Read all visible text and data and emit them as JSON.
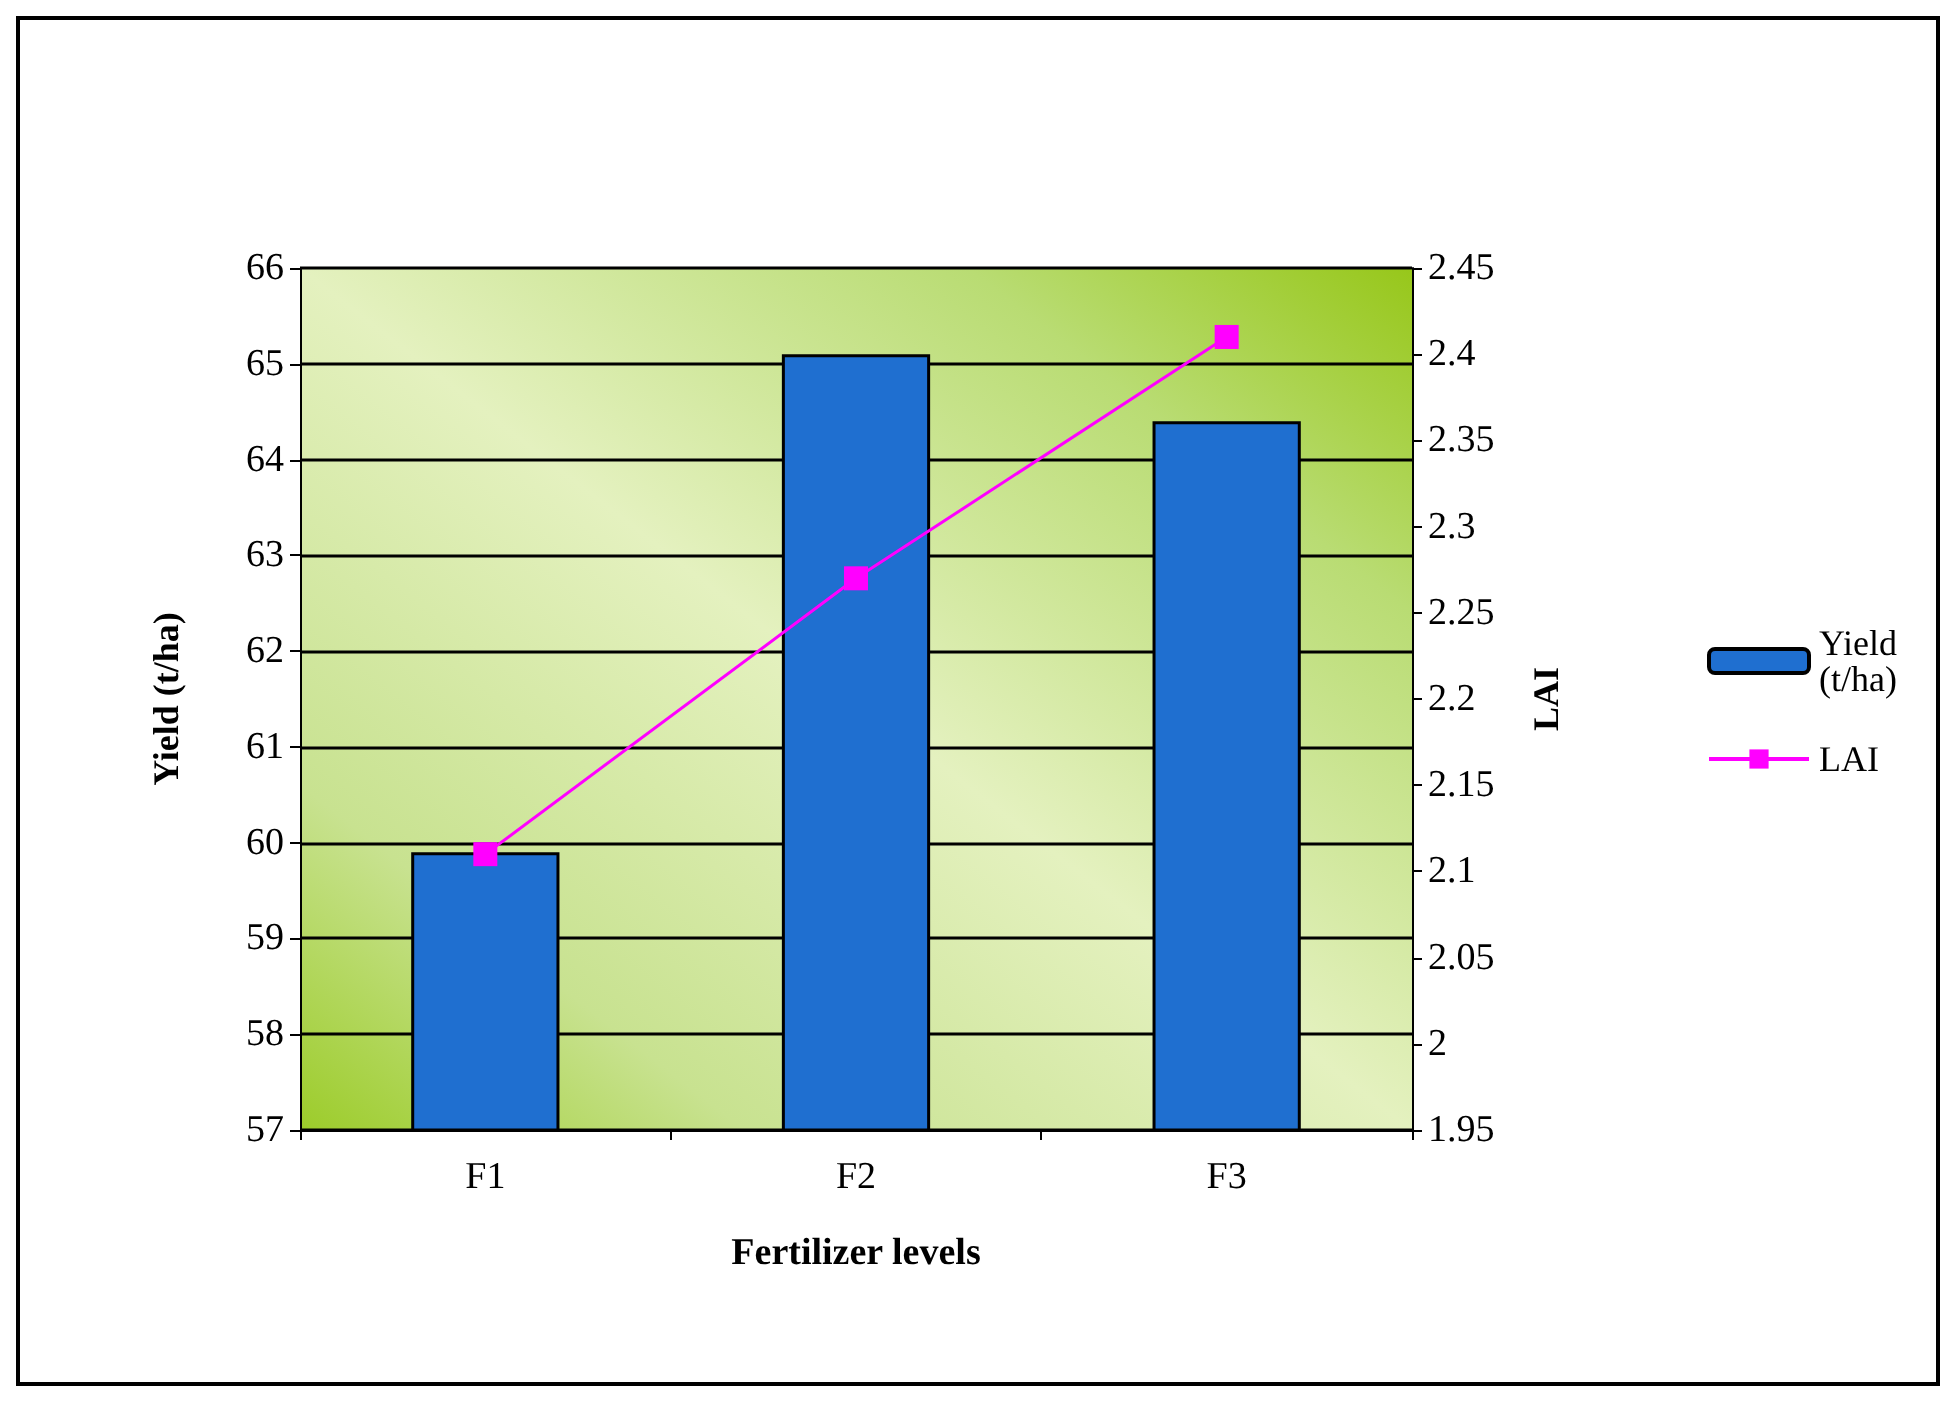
{
  "chart_data": {
    "type": "bar",
    "xlabel": "Fertilizer levels",
    "ylabel": "Yield (t/ha)",
    "y2label": "LAI",
    "categories": [
      "F1",
      "F2",
      "F3"
    ],
    "series": [
      {
        "name": "Yield (t/ha)",
        "color": "#1f6fd0",
        "values": [
          59.9,
          65.1,
          64.4
        ]
      },
      {
        "name": "LAI",
        "type": "line",
        "axis": "y2",
        "color": "#ff00ff",
        "marker": "square",
        "values": [
          2.11,
          2.27,
          2.41
        ]
      }
    ],
    "ylim": [
      57,
      66
    ],
    "yticks": [
      57,
      58,
      59,
      60,
      61,
      62,
      63,
      64,
      65,
      66
    ],
    "y2lim": [
      1.95,
      2.45
    ],
    "y2ticks": [
      1.95,
      2,
      2.05,
      2.1,
      2.15,
      2.2,
      2.25,
      2.3,
      2.35,
      2.4,
      2.45
    ],
    "grid": "y",
    "legend": "right"
  }
}
